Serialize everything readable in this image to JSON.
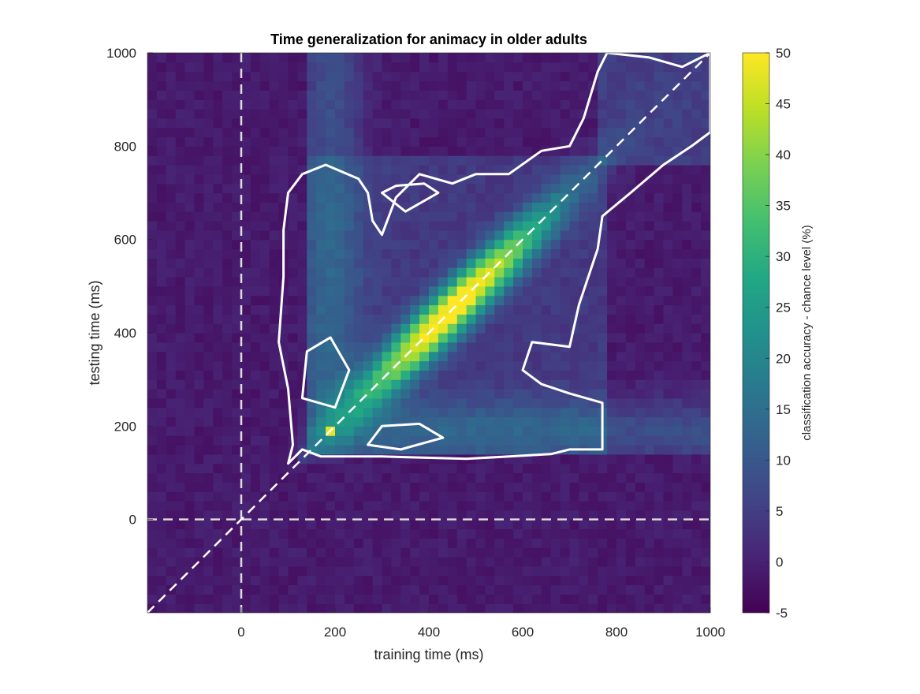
{
  "chart_data": {
    "type": "heatmap",
    "title": "Time generalization for animacy in older adults",
    "xlabel": "training time (ms)",
    "ylabel": "testing time (ms)",
    "xlim": [
      -200,
      1000
    ],
    "ylim": [
      -200,
      1000
    ],
    "xticks": [
      0,
      200,
      400,
      600,
      800,
      1000
    ],
    "yticks": [
      0,
      200,
      400,
      600,
      800,
      1000
    ],
    "colorbar": {
      "label": "classification accuracy - chance level (%)",
      "range": [
        -5,
        50
      ],
      "ticks": [
        -5,
        0,
        5,
        10,
        15,
        20,
        25,
        30,
        35,
        40,
        45,
        50
      ],
      "colormap": "viridis"
    },
    "reference_lines": [
      {
        "kind": "vertical",
        "x": 0,
        "style": "dashed",
        "color": "#dcdcdc"
      },
      {
        "kind": "horizontal",
        "y": 0,
        "style": "dashed",
        "color": "#dcdcdc"
      },
      {
        "kind": "diagonal",
        "from": [
          -200,
          -200
        ],
        "to": [
          1000,
          1000
        ],
        "style": "dashed",
        "color": "#ffffff"
      }
    ],
    "significance_contour": {
      "color": "#ffffff",
      "main": [
        [
          100,
          120
        ],
        [
          130,
          150
        ],
        [
          170,
          135
        ],
        [
          300,
          135
        ],
        [
          480,
          130
        ],
        [
          660,
          140
        ],
        [
          700,
          150
        ],
        [
          770,
          150
        ],
        [
          770,
          250
        ],
        [
          700,
          270
        ],
        [
          640,
          290
        ],
        [
          600,
          320
        ],
        [
          620,
          380
        ],
        [
          700,
          370
        ],
        [
          720,
          460
        ],
        [
          740,
          520
        ],
        [
          760,
          580
        ],
        [
          770,
          650
        ],
        [
          830,
          700
        ],
        [
          900,
          760
        ],
        [
          960,
          800
        ],
        [
          1000,
          830
        ],
        [
          1000,
          1000
        ],
        [
          940,
          970
        ],
        [
          870,
          990
        ],
        [
          780,
          1000
        ],
        [
          760,
          960
        ],
        [
          730,
          860
        ],
        [
          700,
          800
        ],
        [
          640,
          790
        ],
        [
          570,
          740
        ],
        [
          500,
          740
        ],
        [
          450,
          720
        ],
        [
          380,
          740
        ],
        [
          330,
          690
        ],
        [
          300,
          610
        ],
        [
          280,
          640
        ],
        [
          270,
          700
        ],
        [
          250,
          730
        ],
        [
          180,
          760
        ],
        [
          130,
          740
        ],
        [
          100,
          700
        ],
        [
          90,
          620
        ],
        [
          90,
          520
        ],
        [
          80,
          380
        ],
        [
          100,
          280
        ],
        [
          110,
          160
        ]
      ],
      "islands": [
        [
          [
            130,
            260
          ],
          [
            200,
            240
          ],
          [
            230,
            320
          ],
          [
            190,
            390
          ],
          [
            140,
            360
          ]
        ],
        [
          [
            270,
            160
          ],
          [
            340,
            150
          ],
          [
            430,
            175
          ],
          [
            380,
            205
          ],
          [
            300,
            200
          ]
        ],
        [
          [
            300,
            700
          ],
          [
            350,
            660
          ],
          [
            420,
            700
          ],
          [
            390,
            720
          ],
          [
            330,
            715
          ]
        ]
      ]
    },
    "peak": {
      "x": 450,
      "y": 450,
      "value": 50
    },
    "grid": false,
    "legend": "none"
  }
}
